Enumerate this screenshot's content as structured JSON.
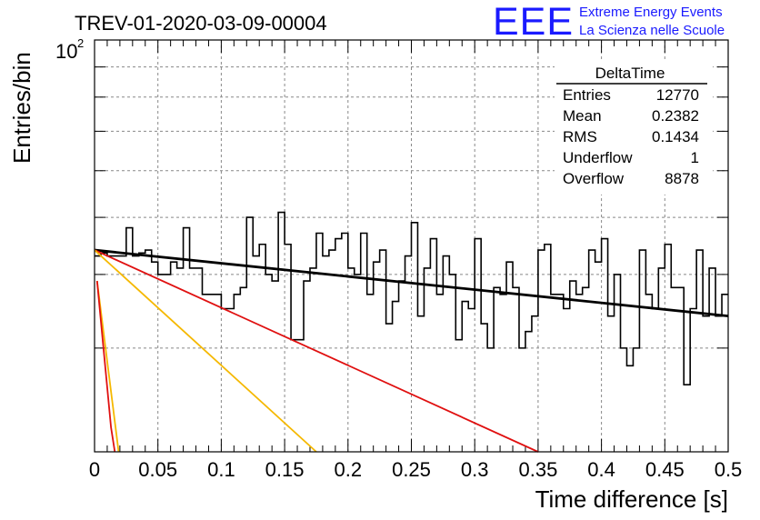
{
  "header": {
    "run_title": "TREV-01-2020-03-09-00004",
    "logo_text": "EEE",
    "org_line1": "Extreme Energy Events",
    "org_line2": "La Scienza nelle Scuole",
    "logo_color": "#1a1aff"
  },
  "stats": {
    "title": "DeltaTime",
    "rows": [
      {
        "label": "Entries",
        "value": "12770"
      },
      {
        "label": "Mean",
        "value": "0.2382"
      },
      {
        "label": "RMS",
        "value": "0.1434"
      },
      {
        "label": "Underflow",
        "value": "1"
      },
      {
        "label": "Overflow",
        "value": "8878"
      }
    ]
  },
  "chart_data": {
    "type": "line",
    "xlabel": "Time difference [s]",
    "ylabel": "Entries/bin",
    "xlim": [
      0,
      0.5
    ],
    "ylim": [
      20,
      100
    ],
    "yscale": "log",
    "grid": true,
    "x_ticks": [
      "0",
      "0.05",
      "0.1",
      "0.15",
      "0.2",
      "0.25",
      "0.3",
      "0.35",
      "0.4",
      "0.45",
      "0.5"
    ],
    "y_tick_label": {
      "base": "10",
      "exponent": "2",
      "value": 100
    },
    "colors": {
      "histogram": "#000000",
      "fit": "#000000",
      "red": "#e01010",
      "orange": "#f5b800"
    },
    "histogram": {
      "bin_width": 0.005,
      "counts": [
        43,
        43.5,
        43,
        43,
        43,
        48,
        43,
        43.5,
        44,
        42,
        40,
        40,
        42,
        41,
        48,
        41,
        41,
        37,
        37,
        37,
        35,
        35,
        37,
        38,
        50,
        43,
        45,
        40,
        39,
        51,
        45,
        31,
        31,
        39,
        41,
        47,
        43,
        44,
        46,
        47,
        41,
        40,
        47,
        37,
        42,
        44,
        33,
        36,
        39,
        43,
        49,
        34,
        41,
        46,
        37,
        43,
        40,
        31,
        36,
        35,
        46,
        33,
        30,
        38,
        37,
        42,
        38,
        30,
        32,
        34,
        44,
        45,
        37,
        37,
        35,
        39,
        37,
        38,
        44,
        42,
        46,
        34,
        40,
        30,
        28,
        30,
        44,
        37,
        35,
        41,
        45,
        38,
        38,
        26,
        35,
        44,
        34,
        41,
        34,
        37
      ]
    },
    "series": [
      {
        "color": "#000000",
        "x": [
          0,
          0.5
        ],
        "y": [
          44,
          34
        ]
      },
      {
        "color": "#e01010",
        "x": [
          0,
          0.35
        ],
        "y": [
          44,
          20
        ]
      },
      {
        "color": "#f5b800",
        "x": [
          0,
          0.175
        ],
        "y": [
          44,
          20
        ]
      },
      {
        "color": "#f5b800",
        "x": [
          0.002,
          0.019
        ],
        "y": [
          39,
          20
        ]
      },
      {
        "color": "#e01010",
        "x": [
          0.002,
          0.013,
          0.016
        ],
        "y": [
          39,
          22,
          20
        ]
      }
    ]
  }
}
